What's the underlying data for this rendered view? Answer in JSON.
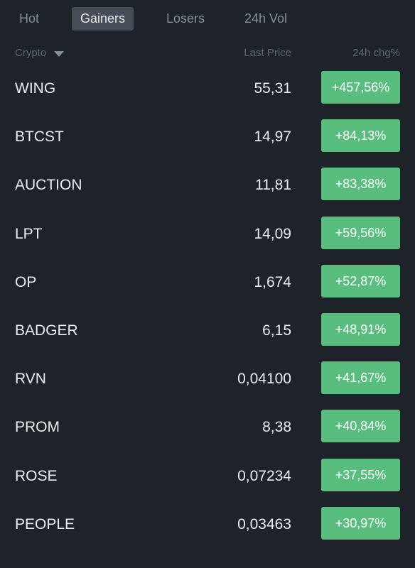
{
  "tabs": [
    {
      "label": "Hot",
      "active": false
    },
    {
      "label": "Gainers",
      "active": true
    },
    {
      "label": "Losers",
      "active": false
    },
    {
      "label": "24h Vol",
      "active": false
    }
  ],
  "header": {
    "crypto": "Crypto",
    "last_price": "Last Price",
    "change": "24h chg%",
    "sort_icon": "caret-down-icon"
  },
  "colors": {
    "background": "#1e2329",
    "gain": "#58bd7d",
    "active_tab": "#474d57"
  },
  "rows": [
    {
      "symbol": "WING",
      "price": "55,31",
      "change": "+457,56%"
    },
    {
      "symbol": "BTCST",
      "price": "14,97",
      "change": "+84,13%"
    },
    {
      "symbol": "AUCTION",
      "price": "11,81",
      "change": "+83,38%"
    },
    {
      "symbol": "LPT",
      "price": "14,09",
      "change": "+59,56%"
    },
    {
      "symbol": "OP",
      "price": "1,674",
      "change": "+52,87%"
    },
    {
      "symbol": "BADGER",
      "price": "6,15",
      "change": "+48,91%"
    },
    {
      "symbol": "RVN",
      "price": "0,04100",
      "change": "+41,67%"
    },
    {
      "symbol": "PROM",
      "price": "8,38",
      "change": "+40,84%"
    },
    {
      "symbol": "ROSE",
      "price": "0,07234",
      "change": "+37,55%"
    },
    {
      "symbol": "PEOPLE",
      "price": "0,03463",
      "change": "+30,97%"
    }
  ]
}
